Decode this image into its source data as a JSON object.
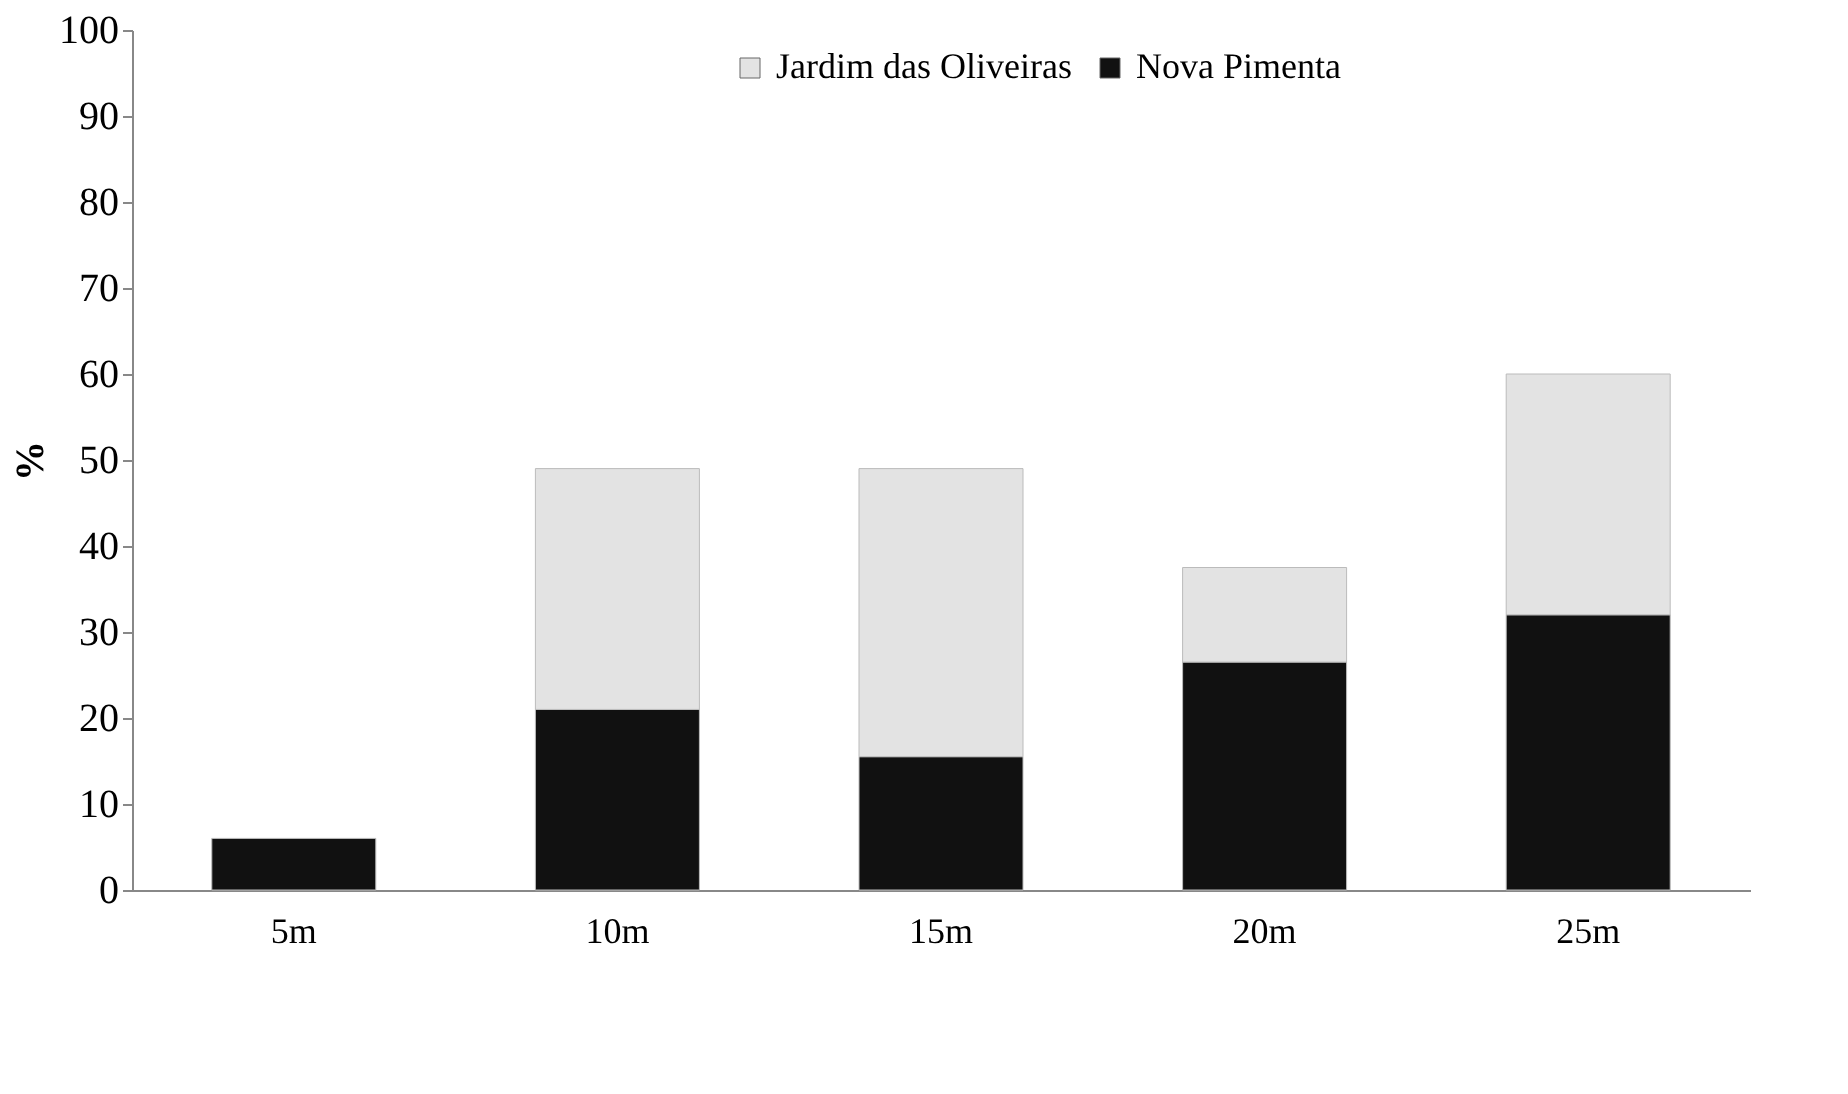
{
  "chart_data": {
    "type": "bar",
    "stacked": true,
    "ylabel": "%",
    "categories": [
      "5m",
      "10m",
      "15m",
      "20m",
      "25m"
    ],
    "series": [
      {
        "name": "Nova Pimenta",
        "color": "#111111",
        "values": [
          6,
          21,
          15.5,
          26.5,
          32
        ]
      },
      {
        "name": "Jardim das Oliveiras",
        "color": "#e3e3e3",
        "values": [
          null,
          28,
          33.5,
          11,
          28
        ]
      }
    ],
    "ylim": [
      0,
      100
    ],
    "yticks": [
      0,
      10,
      20,
      30,
      40,
      50,
      60,
      70,
      80,
      90,
      100
    ],
    "grid": false,
    "legend": "top"
  }
}
